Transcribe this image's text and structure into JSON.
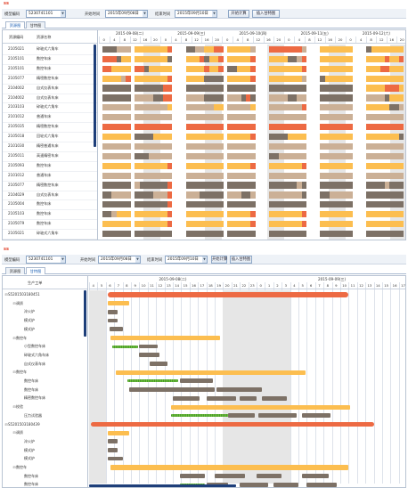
{
  "colors": {
    "orange": "#fcbe50",
    "red": "#ed6a43",
    "gray": "#7d7166",
    "tan": "#cbb096",
    "green": "#4a9a2c",
    "nonwork": "#e6e6e6",
    "accent": "#1e3f7a"
  },
  "app": {
    "window_mark": "ss"
  },
  "toolbar": {
    "code_label": "模型编码",
    "code_value": "5230741101",
    "start_label": "开始时间",
    "start_value": "2015年09月08日",
    "end_label": "结束时间",
    "end_value": "2015年09月10日",
    "btn1": "开始计算",
    "btn2": "插入甘特图"
  },
  "panel1": {
    "tabs": [
      "资源图",
      "甘特图"
    ],
    "col_code": "资源编码",
    "col_name": "资源名称",
    "days": [
      "2015-09-08(二)",
      "2015-09-09(三)",
      "2015-09-10(四)",
      "2015-09-11(五)",
      "2015-09-12(六)"
    ],
    "hours": [
      "0",
      "4",
      "8",
      "12",
      "16",
      "20"
    ],
    "rows": [
      {
        "code": "2105021",
        "name": "碎玻式六角车"
      },
      {
        "code": "2105101",
        "name": "数控车床"
      },
      {
        "code": "2105101",
        "name": "数控车床"
      },
      {
        "code": "2105077",
        "name": "精密数控车床"
      },
      {
        "code": "2104002",
        "name": "自式仪表车床"
      },
      {
        "code": "2104002",
        "name": "自式仪表车床"
      },
      {
        "code": "2103103",
        "name": "碎玻式六角车"
      },
      {
        "code": "2101012",
        "name": "普通车床"
      },
      {
        "code": "2105035",
        "name": "精密数控车床"
      },
      {
        "code": "2105018",
        "name": "回轮式六角车"
      },
      {
        "code": "2101030",
        "name": "精密普通车床"
      },
      {
        "code": "2105011",
        "name": "高速精密车床"
      },
      {
        "code": "2105093",
        "name": "数控车床"
      },
      {
        "code": "2101012",
        "name": "普通车床"
      },
      {
        "code": "2105077",
        "name": "精密数控车床"
      },
      {
        "code": "2104029",
        "name": "自式仪表车床"
      },
      {
        "code": "2105004",
        "name": "数控车床"
      },
      {
        "code": "2105103",
        "name": "数控车床"
      },
      {
        "code": "2105079",
        "name": "数控车床"
      },
      {
        "code": "2105021",
        "name": "碎玻式六角车"
      },
      {
        "code": "2105066",
        "name": "小型数控车床"
      },
      {
        "code": "2101000",
        "name": "精密普通车床"
      }
    ]
  },
  "panel2": {
    "tabs": [
      "资源图",
      "甘特图"
    ],
    "col_name": "生产工单",
    "days": [
      "2015-09-08(二)",
      "2015-09-09(三)"
    ],
    "hours": [
      "4",
      "5",
      "6",
      "7",
      "8",
      "9",
      "10",
      "11",
      "12",
      "13",
      "14",
      "15",
      "16",
      "17",
      "18",
      "19",
      "20",
      "21",
      "22",
      "23",
      "0",
      "1",
      "2",
      "3",
      "4",
      "5",
      "6",
      "7",
      "8",
      "9",
      "10",
      "11",
      "12",
      "13",
      "14",
      "15",
      "16",
      "17"
    ],
    "rows": [
      {
        "label": "S5201503180451",
        "level": 0,
        "toggle": "⊟"
      },
      {
        "label": "调质",
        "level": 1,
        "toggle": "⊟"
      },
      {
        "label": "淬火炉",
        "level": 2,
        "toggle": ""
      },
      {
        "label": "模式炉",
        "level": 2,
        "toggle": ""
      },
      {
        "label": "模式炉",
        "level": 2,
        "toggle": ""
      },
      {
        "label": "数控车",
        "level": 1,
        "toggle": "⊟"
      },
      {
        "label": "小型数控车床",
        "level": 2,
        "toggle": ""
      },
      {
        "label": "碎玻式六角车床",
        "level": 2,
        "toggle": ""
      },
      {
        "label": "自式仪表车床",
        "level": 2,
        "toggle": ""
      },
      {
        "label": "数控车",
        "level": 1,
        "toggle": "⊟"
      },
      {
        "label": "数控车床",
        "level": 2,
        "toggle": ""
      },
      {
        "label": "数控车床",
        "level": 2,
        "toggle": ""
      },
      {
        "label": "精密数控车床",
        "level": 2,
        "toggle": ""
      },
      {
        "label": "校验",
        "level": 1,
        "toggle": "⊟"
      },
      {
        "label": "压力试验器",
        "level": 2,
        "toggle": ""
      },
      {
        "label": "S5201503180439",
        "level": 0,
        "toggle": "⊟"
      },
      {
        "label": "调质",
        "level": 1,
        "toggle": "⊟"
      },
      {
        "label": "淬火炉",
        "level": 2,
        "toggle": ""
      },
      {
        "label": "模式炉",
        "level": 2,
        "toggle": ""
      },
      {
        "label": "模式炉",
        "level": 2,
        "toggle": ""
      },
      {
        "label": "数控车",
        "level": 1,
        "toggle": "⊟"
      },
      {
        "label": "数控车床",
        "level": 2,
        "toggle": ""
      },
      {
        "label": "数控车床",
        "level": 2,
        "toggle": ""
      }
    ]
  }
}
